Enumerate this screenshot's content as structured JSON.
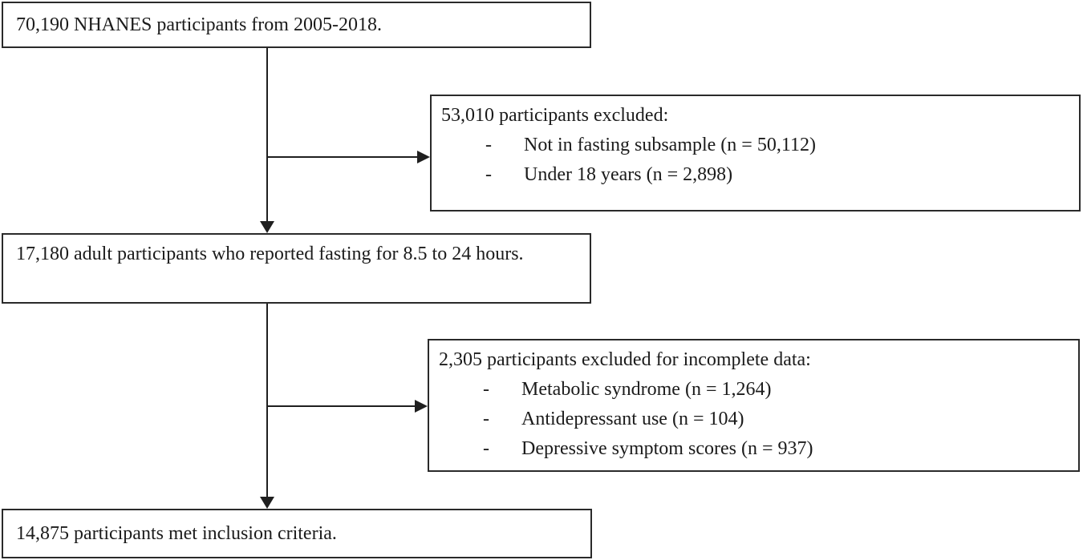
{
  "flow": {
    "bullet_char": "-",
    "start": {
      "text": "70,190 NHANES participants from 2005-2018."
    },
    "exclusion1": {
      "title": "53,010 participants excluded:",
      "items": [
        "Not in fasting subsample (n = 50,112)",
        "Under 18 years (n = 2,898)"
      ]
    },
    "middle": {
      "text": "17,180 adult participants who reported fasting for 8.5 to 24 hours."
    },
    "exclusion2": {
      "title": "2,305 participants excluded for incomplete data:",
      "items": [
        "Metabolic syndrome (n = 1,264)",
        "Antidepressant use (n = 104)",
        "Depressive symptom scores (n = 937)"
      ]
    },
    "end": {
      "text": "14,875 participants met inclusion criteria."
    }
  },
  "colors": {
    "line": "#1f1f1f",
    "border": "#2a2a2a",
    "background": "#ffffff",
    "text": "#1b1b1b"
  }
}
